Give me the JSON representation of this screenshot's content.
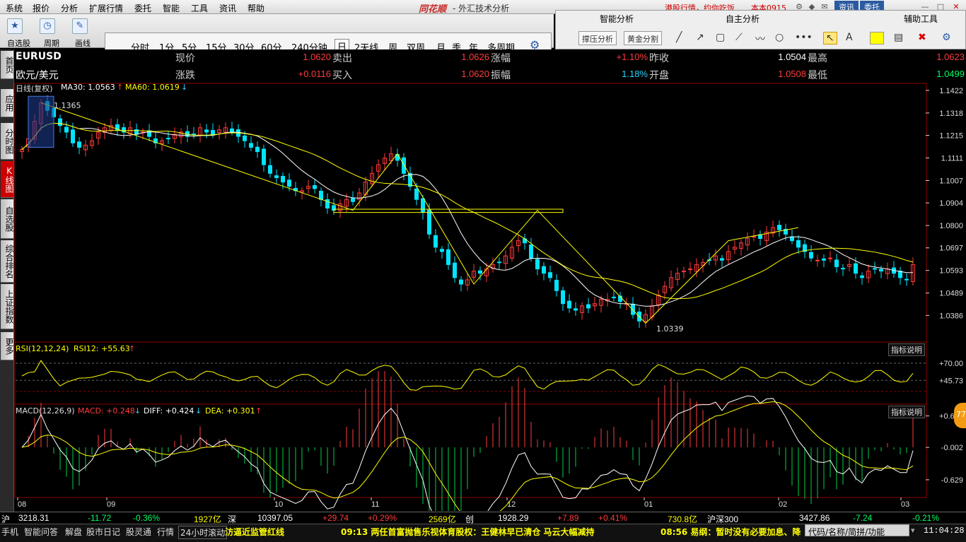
{
  "menu": [
    "系统",
    "报价",
    "分析",
    "扩展行情",
    "委托",
    "智能",
    "工具",
    "资讯",
    "帮助"
  ],
  "app": {
    "brand": "同花顺",
    "title": "- 外汇技术分析",
    "ticker": "港股行情，约你吃饭",
    "user": "本本0915"
  },
  "top_buttons": [
    "资讯",
    "委托"
  ],
  "toolbar": {
    "labels": [
      "自选股",
      "周期",
      "画线"
    ],
    "periods": [
      "分时",
      "1分",
      "5分",
      "15分",
      "30分",
      "60分",
      "240分钟",
      "日",
      "2天线",
      "周",
      "双周",
      "月",
      "季",
      "年",
      "多周期"
    ],
    "active_period": "日"
  },
  "panel": {
    "smart_title": "智能分析",
    "self_title": "自主分析",
    "aux_title": "辅助工具",
    "btn_support": "撑压分析",
    "btn_gold": "黄金分割"
  },
  "sidebar": [
    "首页",
    "应用",
    "分时图",
    "K线图",
    "自选股",
    "综合排名",
    "上证指数",
    "更多"
  ],
  "quote": {
    "symbol": "EURUSD",
    "name": "欧元/美元",
    "l_price": "现价",
    "v_price": "1.0620",
    "l_sell": "卖出",
    "v_sell": "1.0626",
    "l_chg": "涨幅",
    "v_chg": "+1.10%",
    "l_prev": "昨收",
    "v_prev": "1.0504",
    "l_high": "最高",
    "v_high": "1.0623",
    "l_diff": "涨跌",
    "v_diff": "+0.0116",
    "l_buy": "买入",
    "v_buy": "1.0620",
    "l_amp": "振幅",
    "v_amp": "1.18%",
    "l_open": "开盘",
    "v_open": "1.0508",
    "l_low": "最低",
    "v_low": "1.0499"
  },
  "kline": {
    "legend": "日线(复权)",
    "ma30": "MA30: 1.0563",
    "ma60": "MA60: 1.0619",
    "high_mark": "1.1365",
    "low_mark": "1.0339"
  },
  "rsi": {
    "legend": "RSI(12,12,24)",
    "value": "RSI12: +55.63",
    "explain": "指标说明"
  },
  "macd": {
    "legend": "MACD(12,26,9)",
    "macd": "MACD: +0.248",
    "diff": "DIFF: +0.424",
    "dea": "DEA: +0.301",
    "explain": "指标说明"
  },
  "status": [
    "沪",
    "3218.31",
    "-11.72",
    "-0.36%",
    "1927亿",
    "深",
    "10397.05",
    "+29.74",
    "+0.29%",
    "2569亿",
    "创",
    "1928.29",
    "+7.89",
    "+0.41%",
    "730.8亿",
    "沪深300",
    "3427.86",
    "-7.24",
    "-0.21%"
  ],
  "bottom": {
    "tabs": [
      "手机",
      "智能问答",
      "解盘",
      "股市日记",
      "股灵通",
      "行情",
      "24小时滚动"
    ],
    "news1": "汸逼近监管红线",
    "news2": "09:13 两任首富抛售乐视体育股权：王健林早已清仓 马云大幅减持",
    "news3": "08:56 易纲：暂时没有必要加息、降",
    "cmd": "代码/名称/简拼/功能",
    "clock": "11:04:28",
    "float": "77"
  },
  "chart_data": [
    {
      "type": "candlestick",
      "title": "EURUSD 日线(复权)",
      "y_ticks": [
        1.1422,
        1.1318,
        1.1215,
        1.1111,
        1.1007,
        1.0904,
        1.08,
        1.0697,
        1.0593,
        1.0489,
        1.0386
      ],
      "ylim": [
        1.0335,
        1.1425
      ],
      "x_ticks": [
        "08",
        "09",
        "10",
        "11",
        "12",
        "01",
        "02",
        "03"
      ],
      "close_series": [
        1.115,
        1.12,
        1.128,
        1.1365,
        1.133,
        1.13,
        1.126,
        1.123,
        1.118,
        1.116,
        1.117,
        1.119,
        1.123,
        1.125,
        1.126,
        1.124,
        1.123,
        1.125,
        1.122,
        1.123,
        1.121,
        1.118,
        1.119,
        1.12,
        1.122,
        1.123,
        1.121,
        1.122,
        1.125,
        1.123,
        1.122,
        1.124,
        1.125,
        1.123,
        1.121,
        1.119,
        1.116,
        1.114,
        1.108,
        1.104,
        1.102,
        1.1,
        1.098,
        1.096,
        1.096,
        1.098,
        1.097,
        1.092,
        1.088,
        1.087,
        1.09,
        1.092,
        1.091,
        1.095,
        1.1,
        1.104,
        1.108,
        1.111,
        1.113,
        1.11,
        1.104,
        1.098,
        1.092,
        1.086,
        1.076,
        1.07,
        1.068,
        1.062,
        1.056,
        1.053,
        1.055,
        1.059,
        1.058,
        1.06,
        1.062,
        1.063,
        1.066,
        1.07,
        1.073,
        1.072,
        1.065,
        1.06,
        1.058,
        1.056,
        1.05,
        1.044,
        1.042,
        1.041,
        1.043,
        1.042,
        1.044,
        1.046,
        1.046,
        1.047,
        1.045,
        1.044,
        1.039,
        1.036,
        1.039,
        1.043,
        1.048,
        1.052,
        1.056,
        1.058,
        1.059,
        1.06,
        1.062,
        1.063,
        1.064,
        1.066,
        1.064,
        1.068,
        1.07,
        1.072,
        1.074,
        1.075,
        1.074,
        1.077,
        1.079,
        1.078,
        1.076,
        1.073,
        1.07,
        1.068,
        1.065,
        1.064,
        1.064,
        1.065,
        1.061,
        1.06,
        1.062,
        1.058,
        1.056,
        1.059,
        1.06,
        1.059,
        1.06,
        1.058,
        1.056,
        1.055,
        1.062
      ],
      "ma30_value": 1.0563,
      "ma60_value": 1.0619,
      "high": 1.1365,
      "low": 1.0339
    },
    {
      "type": "line",
      "title": "RSI(12,12,24)",
      "y_ticks": [
        70.0,
        45.73
      ],
      "rsi12_last": 55.63
    },
    {
      "type": "bar",
      "title": "MACD(12,26,9)",
      "y_ticks": [
        0.608,
        -0.002,
        -0.629
      ],
      "macd_last": 0.248,
      "diff_last": 0.424,
      "dea_last": 0.301
    }
  ],
  "colors": {
    "up": "#ff3b3b",
    "down": "#00e5ff",
    "ma1": "#ffffff",
    "ma2": "#ffff00",
    "grid": "#8b0000",
    "accent": "#c00000"
  }
}
